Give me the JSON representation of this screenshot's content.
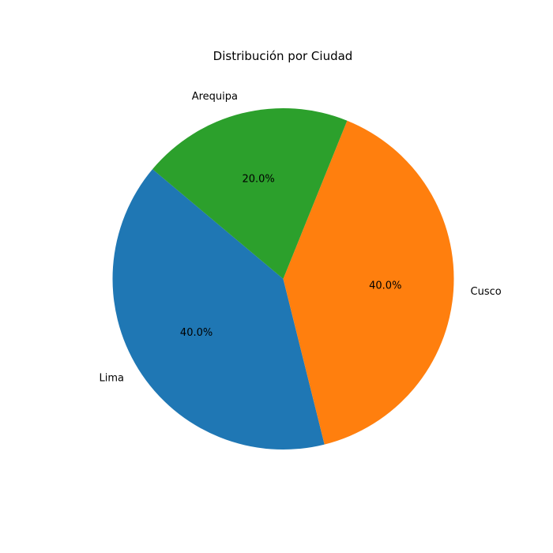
{
  "chart_data": {
    "type": "pie",
    "title": "Distribución por Ciudad",
    "categories": [
      "Lima",
      "Cusco",
      "Arequipa"
    ],
    "values": [
      40.0,
      40.0,
      20.0
    ],
    "value_labels": [
      "40.0%",
      "40.0%",
      "20.0%"
    ],
    "colors": [
      "#1f77b4",
      "#ff7f0e",
      "#2ca02c"
    ],
    "start_angle_deg": 140,
    "legend": "none"
  }
}
